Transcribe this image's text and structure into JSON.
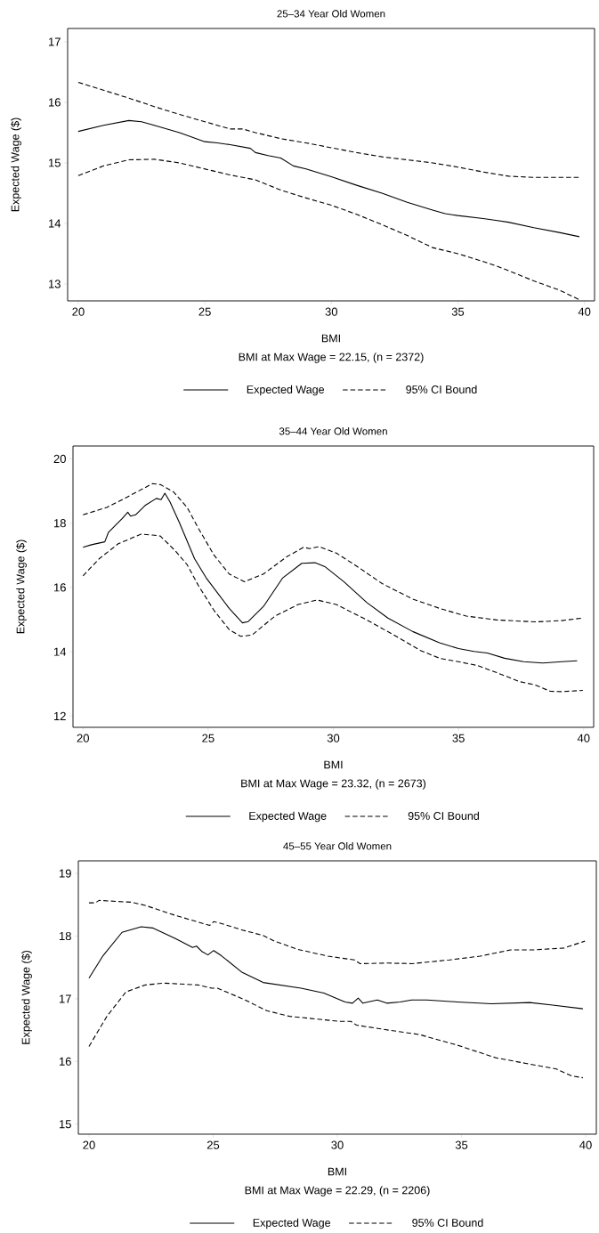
{
  "chart_data": [
    {
      "type": "line",
      "title": "25–34 Year Old Women",
      "xlabel": "BMI",
      "ylabel": "Expected Wage ($)",
      "annotations": [
        "BMI at Max Wage = 22.15, (n = 2372)"
      ],
      "xlim": [
        19.58,
        40.4
      ],
      "ylim": [
        12.72,
        17.22
      ],
      "xticks": [
        20,
        25,
        30,
        35,
        40
      ],
      "yticks": [
        13,
        14,
        15,
        16,
        17
      ],
      "legend": "bottom",
      "grid": false,
      "series": [
        {
          "name": "Expected Wage",
          "color": "#000000",
          "line_style": "solid",
          "x": [
            20,
            21,
            22,
            22.5,
            23,
            24,
            25,
            25.5,
            26,
            26.8,
            27,
            27.5,
            28,
            28.5,
            29,
            30,
            31,
            32,
            33,
            34,
            34.5,
            35,
            36,
            36.5,
            37,
            38,
            39,
            39.8
          ],
          "values": [
            15.52,
            15.62,
            15.7,
            15.68,
            15.62,
            15.5,
            15.35,
            15.33,
            15.3,
            15.24,
            15.17,
            15.12,
            15.08,
            14.95,
            14.9,
            14.77,
            14.63,
            14.5,
            14.35,
            14.22,
            14.16,
            14.13,
            14.08,
            14.05,
            14.02,
            13.93,
            13.85,
            13.78
          ]
        },
        {
          "name": "95% CI Bound",
          "color": "#000000",
          "line_style": "dashed",
          "x": [
            20,
            21,
            22,
            23,
            24,
            25,
            26,
            26.5,
            27,
            28,
            29,
            30,
            31,
            32,
            33,
            34,
            35,
            36,
            37,
            38,
            39.8
          ],
          "values": [
            16.33,
            16.2,
            16.07,
            15.93,
            15.8,
            15.68,
            15.56,
            15.56,
            15.5,
            15.4,
            15.33,
            15.25,
            15.17,
            15.1,
            15.05,
            15.0,
            14.93,
            14.85,
            14.78,
            14.76,
            14.76
          ]
        },
        {
          "color": "#000000",
          "line_style": "dashed",
          "x": [
            20,
            21,
            22,
            23,
            24,
            25,
            26,
            27,
            28,
            29,
            30,
            31,
            32,
            33,
            34,
            35,
            36,
            36.5,
            37,
            38,
            39,
            39.8
          ],
          "values": [
            14.79,
            14.95,
            15.05,
            15.06,
            15.0,
            14.9,
            14.8,
            14.72,
            14.55,
            14.42,
            14.3,
            14.15,
            13.98,
            13.8,
            13.6,
            13.5,
            13.37,
            13.3,
            13.22,
            13.05,
            12.9,
            12.74
          ]
        }
      ]
    },
    {
      "type": "line",
      "title": "35–44 Year Old Women",
      "xlabel": "BMI",
      "ylabel": "Expected Wage ($)",
      "annotations": [
        "BMI at Max Wage = 23.32, (n = 2673)"
      ],
      "xlim": [
        19.6,
        40.4
      ],
      "ylim": [
        11.65,
        20.4
      ],
      "xticks": [
        20,
        25,
        30,
        35,
        40
      ],
      "yticks": [
        12,
        14,
        16,
        18,
        20
      ],
      "legend": "bottom",
      "grid": false,
      "series": [
        {
          "name": "Expected Wage",
          "color": "#000000",
          "line_style": "solid",
          "x": [
            20,
            20.34,
            20.87,
            21.02,
            21.33,
            21.56,
            21.79,
            21.9,
            22.1,
            22.48,
            22.93,
            23.12,
            23.27,
            23.47,
            23.85,
            24.46,
            24.92,
            25.84,
            26.37,
            26.6,
            27.21,
            27.98,
            28.74,
            29.27,
            29.66,
            30.42,
            31.34,
            32.18,
            33.17,
            34.24,
            35.0,
            35.62,
            36.15,
            36.84,
            37.6,
            38.37,
            39.13,
            39.74
          ],
          "values": [
            17.25,
            17.33,
            17.42,
            17.72,
            17.96,
            18.14,
            18.34,
            18.22,
            18.26,
            18.55,
            18.77,
            18.73,
            18.93,
            18.67,
            18.02,
            16.89,
            16.3,
            15.35,
            14.9,
            14.94,
            15.41,
            16.3,
            16.75,
            16.77,
            16.65,
            16.18,
            15.53,
            15.05,
            14.63,
            14.28,
            14.1,
            14.01,
            13.96,
            13.8,
            13.69,
            13.65,
            13.69,
            13.72
          ]
        },
        {
          "name": "95% CI Bound",
          "color": "#000000",
          "line_style": "dashed",
          "x": [
            20,
            20.95,
            21.71,
            22.78,
            23.09,
            23.62,
            24.16,
            24.61,
            25.23,
            25.84,
            26.45,
            27.21,
            28.13,
            28.81,
            29.05,
            29.43,
            30.12,
            30.96,
            31.95,
            33.17,
            34.24,
            35.31,
            36.53,
            38.06,
            39.13,
            39.97
          ],
          "values": [
            18.26,
            18.49,
            18.79,
            19.23,
            19.2,
            18.97,
            18.49,
            17.84,
            17.01,
            16.42,
            16.18,
            16.42,
            16.95,
            17.25,
            17.21,
            17.27,
            17.07,
            16.65,
            16.12,
            15.64,
            15.35,
            15.11,
            14.99,
            14.93,
            14.97,
            15.05
          ]
        },
        {
          "color": "#000000",
          "line_style": "dashed",
          "x": [
            20,
            20.64,
            21.41,
            22.32,
            22.78,
            23.09,
            23.7,
            24.16,
            24.61,
            25.23,
            25.84,
            26.3,
            26.75,
            27.67,
            28.59,
            29.35,
            30.12,
            31.34,
            32.56,
            33.48,
            34.24,
            35.0,
            35.77,
            36.53,
            37.45,
            38.06,
            38.67,
            39.13,
            39.97
          ],
          "values": [
            16.36,
            16.89,
            17.36,
            17.66,
            17.63,
            17.6,
            17.13,
            16.71,
            16.06,
            15.29,
            14.69,
            14.48,
            14.52,
            15.11,
            15.47,
            15.61,
            15.47,
            14.99,
            14.46,
            14.04,
            13.8,
            13.69,
            13.57,
            13.35,
            13.07,
            12.97,
            12.77,
            12.76,
            12.8
          ]
        }
      ]
    },
    {
      "type": "line",
      "title": "45–55 Year Old Women",
      "xlabel": "BMI",
      "ylabel": "Expected Wage ($)",
      "annotations": [
        "BMI at Max Wage = 22.29, (n = 2206)"
      ],
      "xlim": [
        19.57,
        40.43
      ],
      "ylim": [
        14.84,
        19.2
      ],
      "xticks": [
        20,
        25,
        30,
        35,
        40
      ],
      "yticks": [
        15,
        16,
        17,
        18,
        19
      ],
      "legend": "bottom",
      "grid": false,
      "series": [
        {
          "name": "Expected Wage",
          "color": "#000000",
          "line_style": "solid",
          "x": [
            20,
            20.57,
            21.33,
            22.1,
            22.56,
            23.48,
            24.17,
            24.33,
            24.56,
            24.79,
            25.02,
            25.32,
            26.17,
            27.01,
            28.54,
            29.46,
            30.31,
            30.61,
            30.84,
            31.03,
            31.61,
            31.99,
            32.53,
            32.99,
            33.6,
            34.83,
            36.21,
            37.75,
            38.67,
            39.89
          ],
          "values": [
            17.33,
            17.69,
            18.06,
            18.15,
            18.13,
            17.96,
            17.82,
            17.84,
            17.75,
            17.7,
            17.77,
            17.69,
            17.42,
            17.26,
            17.17,
            17.09,
            16.95,
            16.93,
            17.01,
            16.93,
            16.98,
            16.93,
            16.95,
            16.98,
            16.98,
            16.95,
            16.92,
            16.94,
            16.9,
            16.84
          ]
        },
        {
          "name": "95% CI Bound",
          "color": "#000000",
          "line_style": "dashed",
          "x": [
            20,
            20.25,
            20.41,
            21.72,
            22.26,
            23.48,
            24.86,
            25.02,
            25.25,
            26.24,
            27.01,
            27.47,
            28.39,
            29.62,
            30.69,
            30.92,
            32.07,
            32.99,
            34.52,
            35.75,
            36.98,
            37.9,
            39.13,
            39.97
          ],
          "values": [
            18.53,
            18.53,
            18.57,
            18.54,
            18.49,
            18.33,
            18.17,
            18.23,
            18.21,
            18.09,
            18.01,
            17.92,
            17.79,
            17.68,
            17.62,
            17.56,
            17.57,
            17.56,
            17.62,
            17.68,
            17.78,
            17.78,
            17.81,
            17.92
          ]
        },
        {
          "color": "#000000",
          "line_style": "dashed",
          "x": [
            20,
            20.72,
            21.49,
            22.26,
            23.02,
            24.4,
            24.94,
            25.17,
            26.24,
            27.16,
            28.08,
            30.08,
            30.54,
            30.77,
            32.07,
            33.3,
            34.83,
            36.37,
            37.59,
            38.82,
            39.43,
            39.89
          ],
          "values": [
            16.24,
            16.72,
            17.11,
            17.22,
            17.25,
            17.22,
            17.17,
            17.17,
            16.99,
            16.81,
            16.72,
            16.64,
            16.64,
            16.58,
            16.5,
            16.43,
            16.26,
            16.06,
            15.97,
            15.88,
            15.77,
            15.74
          ]
        }
      ]
    }
  ]
}
